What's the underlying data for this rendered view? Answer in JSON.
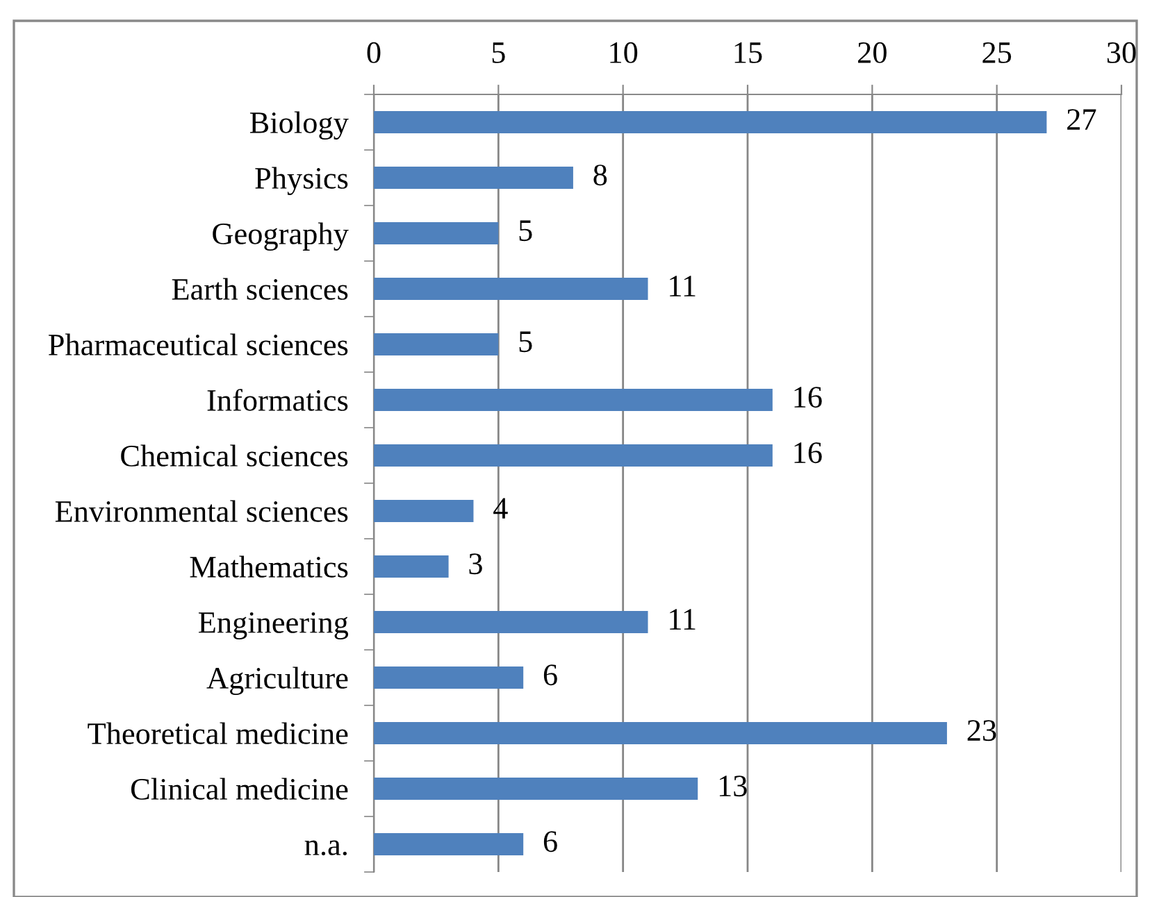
{
  "chart_data": {
    "type": "bar",
    "orientation": "horizontal",
    "categories": [
      "Biology",
      "Physics",
      "Geography",
      "Earth sciences",
      "Pharmaceutical sciences",
      "Informatics",
      "Chemical sciences",
      "Environmental sciences",
      "Mathematics",
      "Engineering",
      "Agriculture",
      "Theoretical medicine",
      "Clinical medicine",
      "n.a."
    ],
    "values": [
      27,
      8,
      5,
      11,
      5,
      16,
      16,
      4,
      3,
      11,
      6,
      23,
      13,
      6
    ],
    "color": "#4f81bd",
    "xlim": [
      0,
      30
    ],
    "xticks": [
      0,
      5,
      10,
      15,
      20,
      25,
      30
    ],
    "grid": "x",
    "data_labels": true,
    "legend": false
  }
}
